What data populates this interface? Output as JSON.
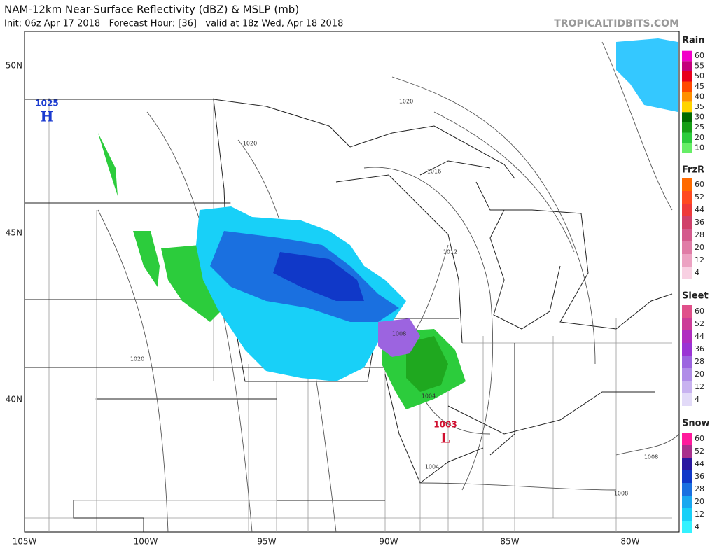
{
  "header": {
    "title": "NAM-12km Near-Surface Reflectivity (dBZ) & MSLP (mb)",
    "subtitle": "Init: 06z Apr 17 2018   Forecast Hour: [36]   valid at 18z Wed, Apr 18 2018",
    "source": "TROPICALTIDBITS.COM"
  },
  "map": {
    "lat_labels": [
      "50N",
      "45N",
      "40N"
    ],
    "lon_labels": [
      "105W",
      "100W",
      "95W",
      "90W",
      "85W",
      "80W"
    ],
    "pressure_centers": [
      {
        "value": "1025",
        "letter": "H"
      },
      {
        "value": "1003",
        "letter": "L"
      }
    ],
    "isobar_labels": [
      "1020",
      "1020",
      "1016",
      "1012",
      "1008",
      "1004",
      "1004",
      "1008",
      "1008",
      "1020"
    ]
  },
  "legend": [
    {
      "title": "Rain",
      "levels": [
        "60",
        "55",
        "50",
        "45",
        "40",
        "35",
        "30",
        "25",
        "20",
        "10"
      ],
      "colors": [
        "#f200c8",
        "#c4007a",
        "#e8001c",
        "#ff4a00",
        "#ff9000",
        "#ffd400",
        "#006a00",
        "#169e16",
        "#2ccc3c",
        "#66ee66"
      ]
    },
    {
      "title": "FrzR",
      "levels": [
        "60",
        "52",
        "44",
        "36",
        "28",
        "20",
        "12",
        "4"
      ],
      "colors": [
        "#ff6a00",
        "#ff4a20",
        "#ee3a3a",
        "#d0406a",
        "#d45a8c",
        "#e07ca6",
        "#eca2c2",
        "#f8d0e2"
      ]
    },
    {
      "title": "Sleet",
      "levels": [
        "60",
        "52",
        "44",
        "36",
        "28",
        "20",
        "12",
        "4"
      ],
      "colors": [
        "#e0508a",
        "#cc3c98",
        "#b02cc0",
        "#9a34d4",
        "#9c64e0",
        "#b08ce8",
        "#c8b2f0",
        "#e2daf8"
      ]
    },
    {
      "title": "Snow",
      "levels": [
        "60",
        "52",
        "44",
        "36",
        "28",
        "20",
        "12",
        "4"
      ],
      "colors": [
        "#ff1a9c",
        "#a8308c",
        "#2a18a0",
        "#1038c8",
        "#1a70e0",
        "#1aa8f0",
        "#18d0f8",
        "#34f2ff"
      ]
    }
  ]
}
